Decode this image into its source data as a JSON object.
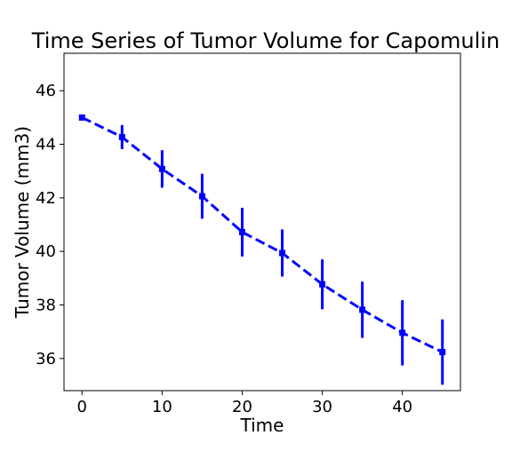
{
  "chart_data": {
    "type": "line",
    "title": "Time Series of Tumor Volume for Capomulin",
    "xlabel": "Time",
    "ylabel": "Tumor Volume (mm3)",
    "xlim": [
      -2.25,
      47.25
    ],
    "ylim": [
      34.8,
      47.4
    ],
    "xticks": [
      0,
      10,
      20,
      30,
      40
    ],
    "yticks": [
      36,
      38,
      40,
      42,
      44,
      46
    ],
    "grid": false,
    "series": [
      {
        "x": [
          0,
          5,
          10,
          15,
          20,
          25,
          30,
          35,
          40,
          45
        ],
        "y": [
          45.0,
          44.27,
          43.08,
          42.06,
          40.72,
          39.94,
          38.77,
          37.82,
          36.96,
          36.24
        ],
        "error": [
          0.0,
          0.45,
          0.7,
          0.84,
          0.91,
          0.88,
          0.93,
          1.05,
          1.22,
          1.22
        ],
        "line_style": "dashed",
        "marker": "square",
        "color": "#0000ff"
      }
    ]
  }
}
